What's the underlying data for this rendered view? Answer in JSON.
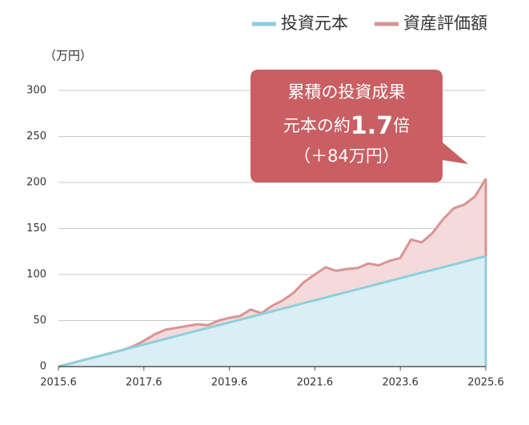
{
  "chart_data": {
    "type": "area",
    "y_unit_label": "（万円）",
    "x": [
      "2015.6",
      "2015.9",
      "2015.12",
      "2016.3",
      "2016.6",
      "2016.9",
      "2016.12",
      "2017.3",
      "2017.6",
      "2017.9",
      "2017.12",
      "2018.3",
      "2018.6",
      "2018.9",
      "2018.12",
      "2019.3",
      "2019.6",
      "2019.9",
      "2019.12",
      "2020.3",
      "2020.6",
      "2020.9",
      "2020.12",
      "2021.3",
      "2021.6",
      "2021.9",
      "2021.12",
      "2022.3",
      "2022.6",
      "2022.9",
      "2022.12",
      "2023.3",
      "2023.6",
      "2023.9",
      "2023.12",
      "2024.3",
      "2024.6",
      "2024.9",
      "2024.12",
      "2025.3",
      "2025.6"
    ],
    "series": [
      {
        "name": "投資元本",
        "color": "#8ecfdc",
        "fill": "#d9eff5",
        "values": [
          0,
          3,
          6,
          9,
          12,
          15,
          18,
          21,
          24,
          27,
          30,
          33,
          36,
          39,
          42,
          45,
          48,
          51,
          54,
          57,
          60,
          63,
          66,
          69,
          72,
          75,
          78,
          81,
          84,
          87,
          90,
          93,
          96,
          99,
          102,
          105,
          108,
          111,
          114,
          117,
          120
        ]
      },
      {
        "name": "資産評価額",
        "color": "#d99494",
        "fill": "#f4dada",
        "values": [
          0,
          3,
          6,
          9,
          12,
          15,
          18,
          22,
          28,
          35,
          40,
          42,
          44,
          46,
          45,
          50,
          53,
          55,
          62,
          58,
          66,
          72,
          80,
          92,
          100,
          108,
          104,
          106,
          107,
          112,
          110,
          115,
          118,
          138,
          135,
          145,
          160,
          172,
          176,
          185,
          204
        ]
      }
    ],
    "xlim": [
      "2015.6",
      "2025.6"
    ],
    "xticks": [
      "2015.6",
      "2017.6",
      "2019.6",
      "2021.6",
      "2023.6",
      "2025.6"
    ],
    "ylim": [
      0,
      300
    ],
    "yticks": [
      0,
      50,
      100,
      150,
      200,
      250,
      300
    ],
    "grid": true,
    "legend": "top-right",
    "annotation": {
      "line1": "累積の投資成果",
      "line2_prefix": "元本の約",
      "line2_number": "1.7",
      "line2_suffix": "倍",
      "line3": "（＋84万円）",
      "color": "#c95f63"
    }
  }
}
